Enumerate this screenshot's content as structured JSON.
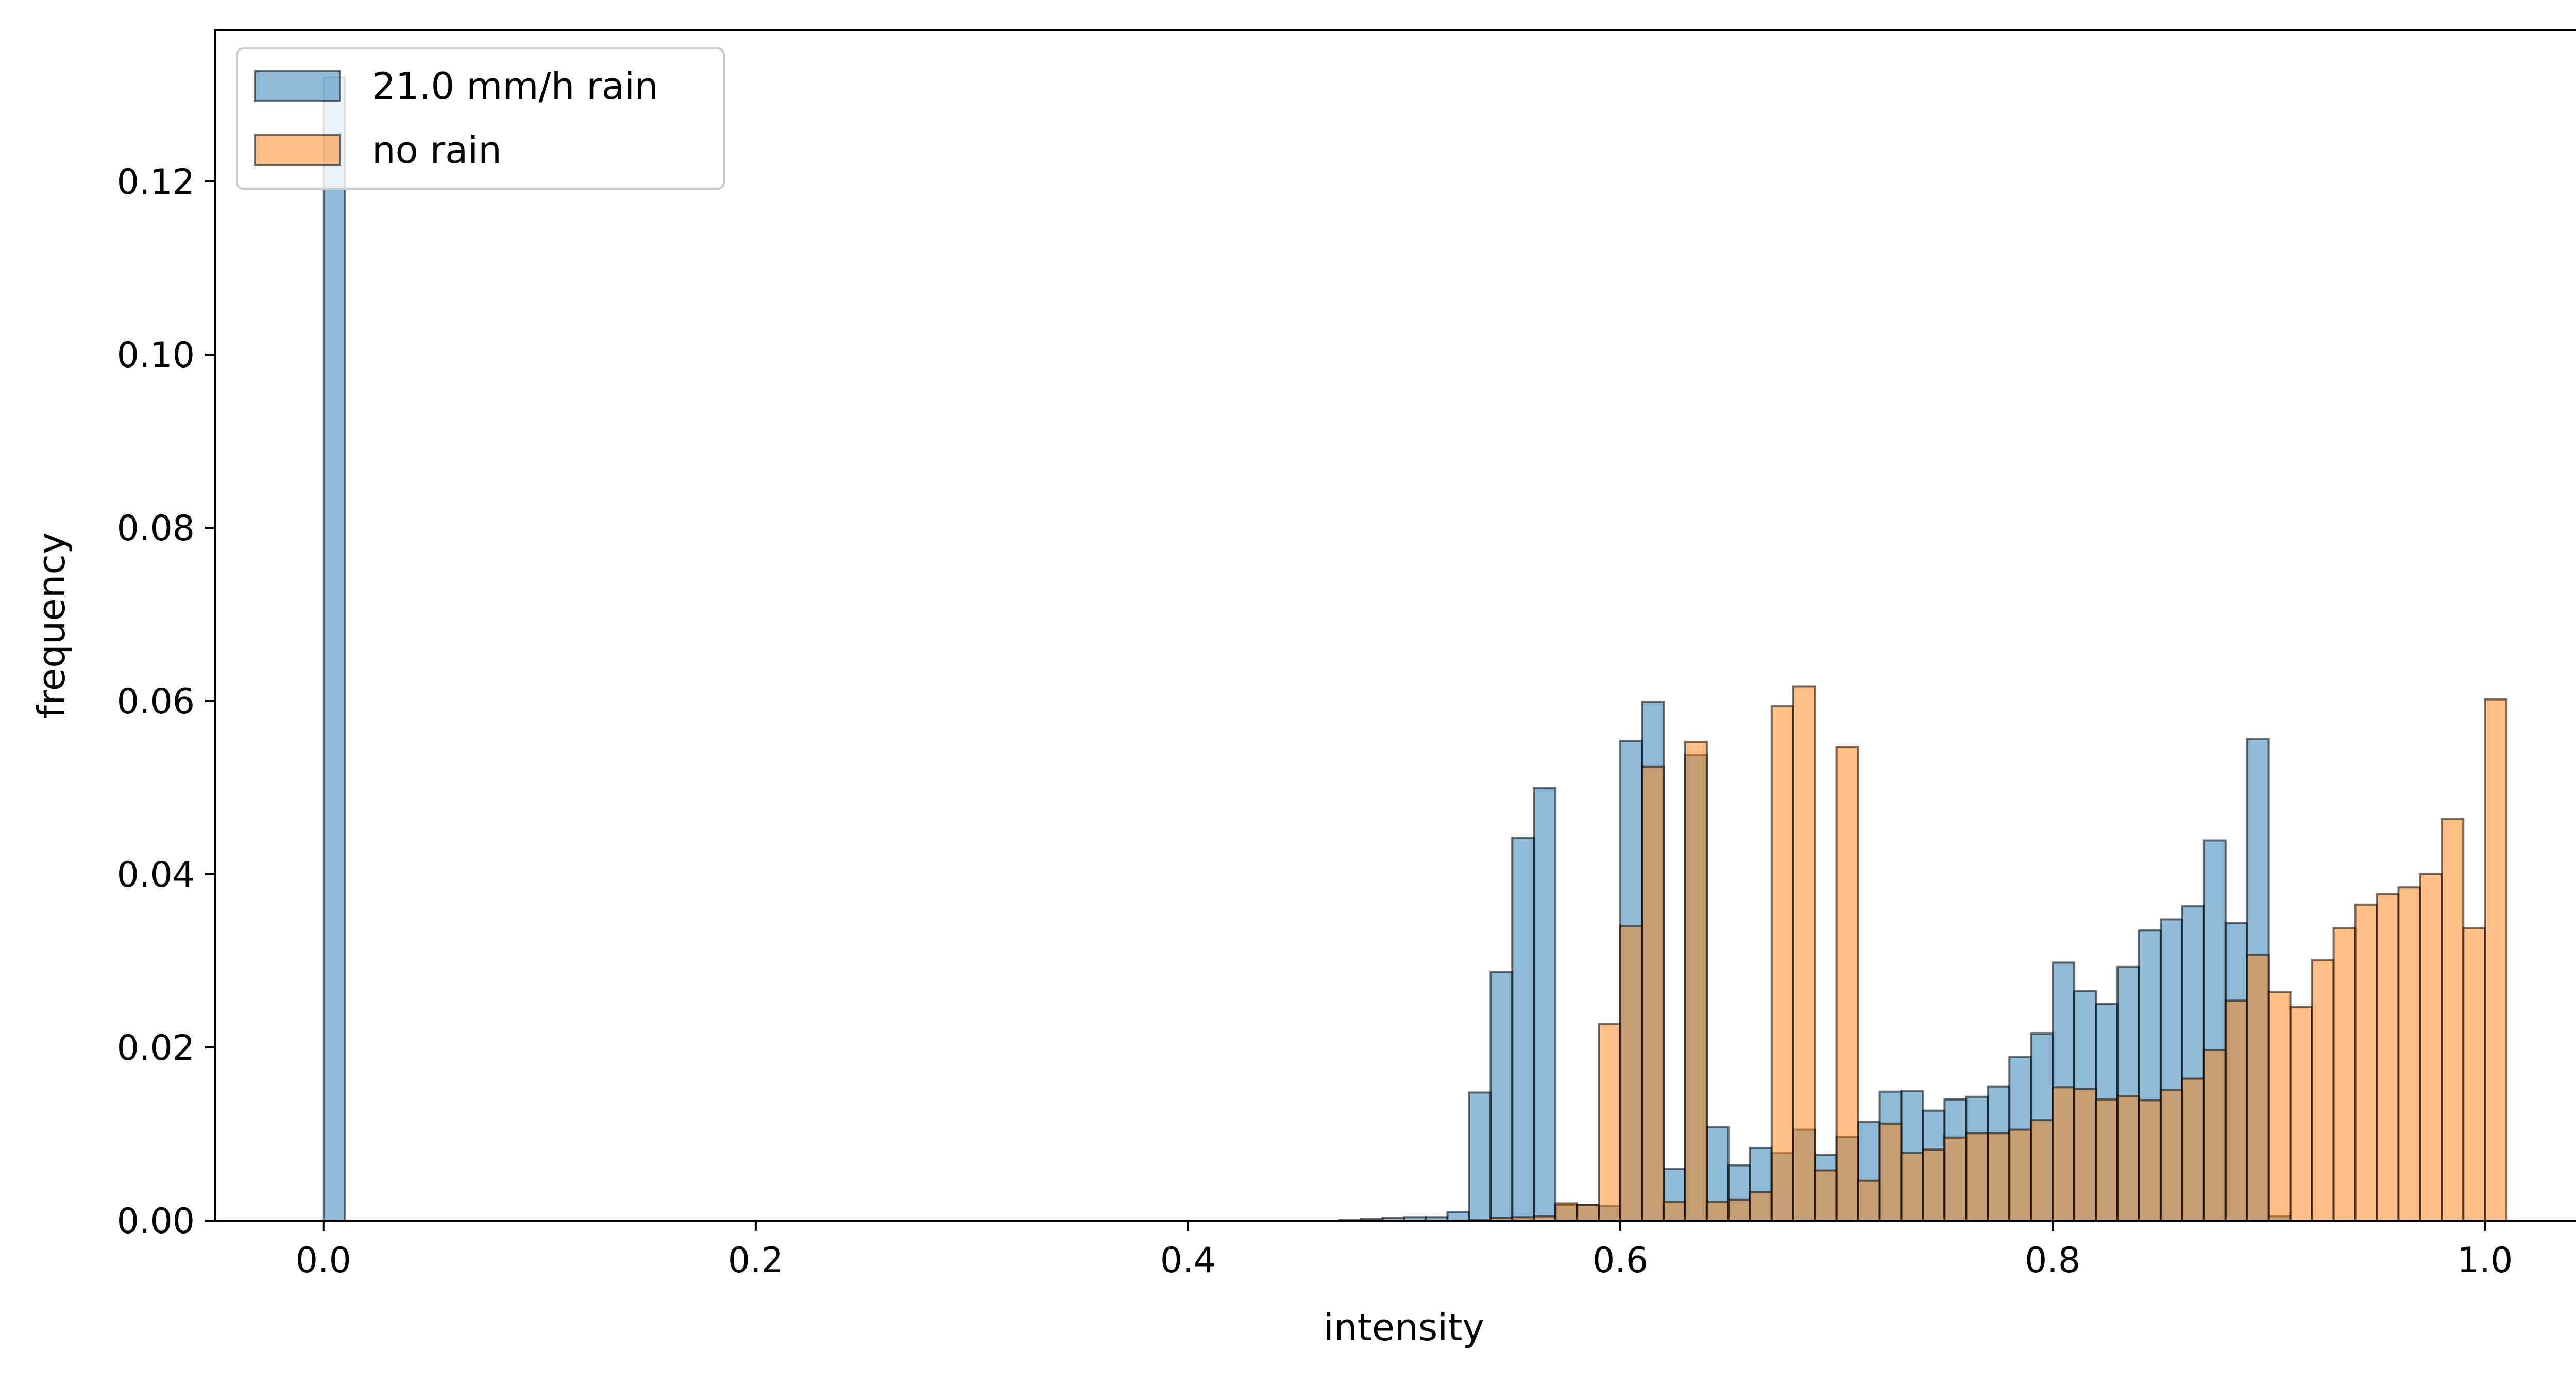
{
  "chart_data": {
    "type": "bar",
    "title": "",
    "xlabel": "intensity",
    "ylabel": "frequency",
    "xlim": [
      -0.05,
      1.05
    ],
    "ylim": [
      0,
      0.1375
    ],
    "x_ticks": [
      0.0,
      0.2,
      0.4,
      0.6,
      0.8,
      1.0
    ],
    "x_tick_labels": [
      "0.0",
      "0.2",
      "0.4",
      "0.6",
      "0.8",
      "1.0"
    ],
    "y_ticks": [
      0.0,
      0.02,
      0.04,
      0.06,
      0.08,
      0.1,
      0.12
    ],
    "y_tick_labels": [
      "0.00",
      "0.02",
      "0.04",
      "0.06",
      "0.08",
      "0.10",
      "0.12"
    ],
    "bin_width": 0.01,
    "legend_location": "top-left",
    "series": [
      {
        "name": "21.0 mm/h rain",
        "color": "#1f77b4",
        "alpha": 0.5,
        "edgecolor": "#000000",
        "bins": [
          [
            0.0,
            0.132
          ],
          [
            0.47,
            0.0001
          ],
          [
            0.48,
            0.0002
          ],
          [
            0.49,
            0.0003
          ],
          [
            0.5,
            0.0004
          ],
          [
            0.51,
            0.0004
          ],
          [
            0.52,
            0.001
          ],
          [
            0.53,
            0.0148
          ],
          [
            0.54,
            0.0287
          ],
          [
            0.55,
            0.0442
          ],
          [
            0.56,
            0.05
          ],
          [
            0.57,
            0.0018
          ],
          [
            0.58,
            0.0018
          ],
          [
            0.59,
            0.0017
          ],
          [
            0.6,
            0.0554
          ],
          [
            0.61,
            0.0599
          ],
          [
            0.62,
            0.006
          ],
          [
            0.63,
            0.0538
          ],
          [
            0.64,
            0.0108
          ],
          [
            0.65,
            0.0064
          ],
          [
            0.66,
            0.0084
          ],
          [
            0.67,
            0.0078
          ],
          [
            0.68,
            0.0105
          ],
          [
            0.69,
            0.0076
          ],
          [
            0.7,
            0.0097
          ],
          [
            0.71,
            0.0114
          ],
          [
            0.72,
            0.0149
          ],
          [
            0.73,
            0.015
          ],
          [
            0.74,
            0.0127
          ],
          [
            0.75,
            0.014
          ],
          [
            0.76,
            0.0143
          ],
          [
            0.77,
            0.0155
          ],
          [
            0.78,
            0.0189
          ],
          [
            0.79,
            0.0216
          ],
          [
            0.8,
            0.0298
          ],
          [
            0.81,
            0.0265
          ],
          [
            0.82,
            0.025
          ],
          [
            0.83,
            0.0293
          ],
          [
            0.84,
            0.0335
          ],
          [
            0.85,
            0.0348
          ],
          [
            0.86,
            0.0363
          ],
          [
            0.87,
            0.0439
          ],
          [
            0.88,
            0.0344
          ],
          [
            0.89,
            0.0556
          ],
          [
            0.9,
            0.0005
          ]
        ]
      },
      {
        "name": "no rain",
        "color": "#ff7f0e",
        "alpha": 0.5,
        "edgecolor": "#000000",
        "bins": [
          [
            0.53,
            0.0001
          ],
          [
            0.54,
            0.0003
          ],
          [
            0.55,
            0.0004
          ],
          [
            0.56,
            0.0005
          ],
          [
            0.57,
            0.002
          ],
          [
            0.58,
            0.0018
          ],
          [
            0.59,
            0.0227
          ],
          [
            0.6,
            0.034
          ],
          [
            0.61,
            0.0524
          ],
          [
            0.62,
            0.0022
          ],
          [
            0.63,
            0.0553
          ],
          [
            0.64,
            0.0022
          ],
          [
            0.65,
            0.0024
          ],
          [
            0.66,
            0.0033
          ],
          [
            0.67,
            0.0594
          ],
          [
            0.68,
            0.0617
          ],
          [
            0.69,
            0.0058
          ],
          [
            0.7,
            0.0547
          ],
          [
            0.71,
            0.0046
          ],
          [
            0.72,
            0.0112
          ],
          [
            0.73,
            0.0078
          ],
          [
            0.74,
            0.0082
          ],
          [
            0.75,
            0.0096
          ],
          [
            0.76,
            0.0101
          ],
          [
            0.77,
            0.0101
          ],
          [
            0.78,
            0.0105
          ],
          [
            0.79,
            0.0116
          ],
          [
            0.8,
            0.0154
          ],
          [
            0.81,
            0.0152
          ],
          [
            0.82,
            0.014
          ],
          [
            0.83,
            0.0144
          ],
          [
            0.84,
            0.0139
          ],
          [
            0.85,
            0.0151
          ],
          [
            0.86,
            0.0164
          ],
          [
            0.87,
            0.0197
          ],
          [
            0.88,
            0.0254
          ],
          [
            0.89,
            0.0307
          ],
          [
            0.9,
            0.0264
          ],
          [
            0.91,
            0.0247
          ],
          [
            0.92,
            0.0301
          ],
          [
            0.93,
            0.0338
          ],
          [
            0.94,
            0.0365
          ],
          [
            0.95,
            0.0377
          ],
          [
            0.96,
            0.0385
          ],
          [
            0.97,
            0.04
          ],
          [
            0.98,
            0.0464
          ],
          [
            0.99,
            0.0338
          ],
          [
            1.0,
            0.0602
          ]
        ]
      }
    ]
  }
}
